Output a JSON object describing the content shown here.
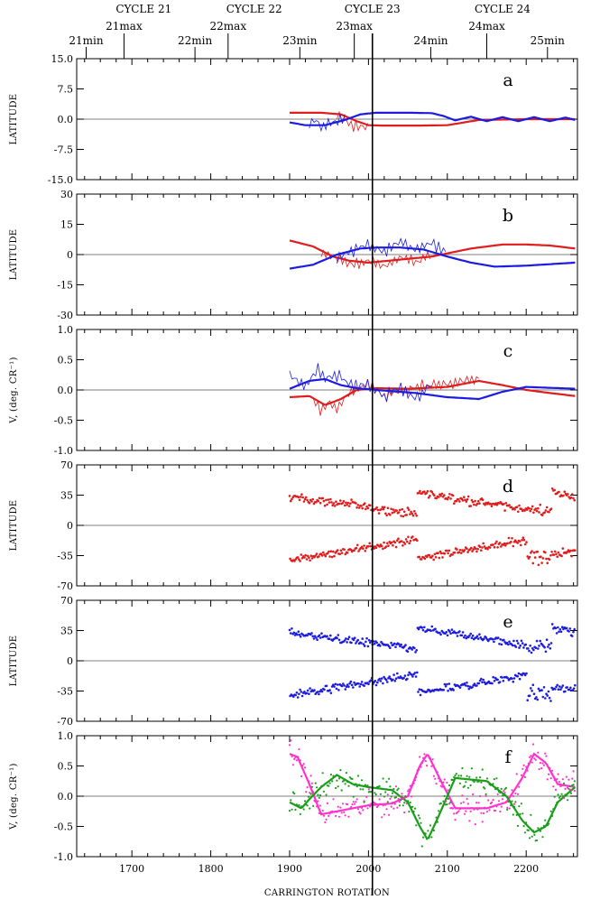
{
  "chart_data": {
    "type": "line",
    "xlabel": "CARRINGTON ROTATION",
    "xlim": [
      1630,
      2265
    ],
    "xticks": [
      1700,
      1800,
      1900,
      2000,
      2100,
      2200
    ],
    "vertical_marker_x": 2005,
    "colors": {
      "red": "#e01c1c",
      "blue": "#1c1ce0",
      "magenta": "#ff33cc",
      "green": "#1a9e1a"
    },
    "cycles": [
      {
        "label": "CYCLE 21",
        "x": 1715
      },
      {
        "label": "CYCLE 22",
        "x": 1855
      },
      {
        "label": "CYCLE 23",
        "x": 2005
      },
      {
        "label": "CYCLE 24",
        "x": 2170
      }
    ],
    "events": [
      {
        "label": "21min",
        "x": 1642,
        "row": "lower"
      },
      {
        "label": "21max",
        "x": 1690,
        "row": "upper"
      },
      {
        "label": "22min",
        "x": 1780,
        "row": "lower"
      },
      {
        "label": "22max",
        "x": 1822,
        "row": "upper"
      },
      {
        "label": "23min",
        "x": 1913,
        "row": "lower"
      },
      {
        "label": "23max",
        "x": 1982,
        "row": "upper"
      },
      {
        "label": "24min",
        "x": 2079,
        "row": "lower"
      },
      {
        "label": "24max",
        "x": 2150,
        "row": "upper"
      },
      {
        "label": "25min",
        "x": 2227,
        "row": "lower"
      }
    ],
    "panels": [
      {
        "letter": "a",
        "ylabel": "LATITUDE",
        "ylim": [
          -15,
          15
        ],
        "yticks": [
          -15.0,
          -7.5,
          0.0,
          7.5,
          15.0
        ],
        "tick_decimals": 1,
        "series": [
          {
            "color": "red",
            "style": "thick",
            "x": [
              1900,
              1940,
              1965,
              1985,
              2000,
              2020,
              2060,
              2100,
              2140,
              2200,
              2262
            ],
            "y": [
              1.6,
              1.6,
              1.2,
              -0.5,
              -1.5,
              -1.6,
              -1.6,
              -1.5,
              -0.2,
              0.0,
              0.0
            ]
          },
          {
            "color": "red",
            "style": "thin",
            "x": [
              1960,
              1970,
              1980,
              1990,
              2000
            ],
            "y": [
              1.4,
              -0.2,
              -1.4,
              -1.9,
              -1.7
            ]
          },
          {
            "color": "blue",
            "style": "thick",
            "x": [
              1900,
              1920,
              1945,
              1970,
              1990,
              2010,
              2050,
              2080,
              2095,
              2110,
              2130,
              2150,
              2170,
              2190,
              2210,
              2230,
              2250,
              2262
            ],
            "y": [
              -0.8,
              -1.5,
              -1.5,
              -0.2,
              1.2,
              1.6,
              1.6,
              1.5,
              0.8,
              -0.3,
              0.6,
              -0.5,
              0.5,
              -0.5,
              0.5,
              -0.5,
              0.4,
              -0.2
            ]
          },
          {
            "color": "blue",
            "style": "thin",
            "x": [
              1925,
              1932,
              1940,
              1955,
              1970
            ],
            "y": [
              -1.0,
              -0.2,
              -1.8,
              -0.8,
              0.2
            ]
          }
        ]
      },
      {
        "letter": "b",
        "ylabel": "LATITUDE",
        "ylim": [
          -30,
          30
        ],
        "yticks": [
          -30,
          -15,
          0,
          15,
          30
        ],
        "tick_decimals": 0,
        "series": [
          {
            "color": "red",
            "style": "thick",
            "x": [
              1900,
              1930,
              1955,
              1975,
              2000,
              2040,
              2080,
              2130,
              2170,
              2200,
              2230,
              2262
            ],
            "y": [
              7,
              4,
              -1,
              -3,
              -4,
              -2.5,
              -1,
              3,
              5,
              5,
              4.5,
              3
            ]
          },
          {
            "color": "red",
            "style": "thin",
            "x": [
              1940,
              1960,
              1980,
              2000,
              2020,
              2040,
              2060,
              2080
            ],
            "y": [
              1,
              -2,
              -5,
              -3,
              -6,
              -1,
              -4,
              0
            ]
          },
          {
            "color": "blue",
            "style": "thick",
            "x": [
              1900,
              1930,
              1960,
              1990,
              2010,
              2040,
              2070,
              2100,
              2130,
              2160,
              2200,
              2262
            ],
            "y": [
              -7,
              -5,
              0,
              3,
              3.5,
              3.5,
              2.5,
              -1,
              -4,
              -6,
              -5.5,
              -4
            ]
          },
          {
            "color": "blue",
            "style": "thin",
            "x": [
              1960,
              1980,
              2000,
              2020,
              2040,
              2060,
              2080,
              2100
            ],
            "y": [
              -2,
              2,
              5,
              1,
              7,
              2,
              6,
              1
            ]
          }
        ]
      },
      {
        "letter": "c",
        "ylabel": "V, (deg. CR⁻¹)",
        "ylim": [
          -1.0,
          1.0
        ],
        "yticks": [
          -1.0,
          -0.5,
          0.0,
          0.5,
          1.0
        ],
        "tick_decimals": 1,
        "series": [
          {
            "color": "red",
            "style": "thick",
            "x": [
              1900,
              1925,
              1945,
              1965,
              1985,
              2010,
              2050,
              2100,
              2140,
              2170,
              2200,
              2230,
              2262
            ],
            "y": [
              -0.12,
              -0.1,
              -0.25,
              -0.15,
              0.0,
              0.03,
              0.02,
              0.05,
              0.15,
              0.08,
              0.0,
              -0.05,
              -0.1
            ]
          },
          {
            "color": "red",
            "style": "thin",
            "x": [
              1930,
              1940,
              1950,
              1960,
              1975,
              2000,
              2020,
              2060,
              2100,
              2140
            ],
            "y": [
              -0.15,
              -0.35,
              -0.2,
              -0.3,
              -0.05,
              0.1,
              -0.1,
              0.05,
              0.1,
              0.2
            ]
          },
          {
            "color": "blue",
            "style": "thick",
            "x": [
              1900,
              1925,
              1945,
              1965,
              1985,
              2010,
              2060,
              2100,
              2140,
              2170,
              2200,
              2262
            ],
            "y": [
              0.02,
              0.15,
              0.18,
              0.08,
              0.03,
              0.0,
              -0.05,
              -0.12,
              -0.15,
              -0.03,
              0.05,
              0.02
            ]
          },
          {
            "color": "blue",
            "style": "thin",
            "x": [
              1900,
              1920,
              1935,
              1945,
              1960,
              1980,
              2000,
              2020,
              2040,
              2060,
              2080
            ],
            "y": [
              0.25,
              0.05,
              0.35,
              0.2,
              0.25,
              0.05,
              0.1,
              -0.1,
              0.05,
              -0.15,
              0.1
            ]
          }
        ]
      },
      {
        "letter": "d",
        "ylabel": "LATITUDE",
        "ylim": [
          -70,
          70
        ],
        "yticks": [
          -70,
          -35,
          0,
          35,
          70
        ],
        "tick_decimals": 0,
        "series": [
          {
            "color": "red",
            "style": "points",
            "generator": "cycle_lat"
          }
        ]
      },
      {
        "letter": "e",
        "ylabel": "LATITUDE",
        "ylim": [
          -70,
          70
        ],
        "yticks": [
          -70,
          -35,
          0,
          35,
          70
        ],
        "tick_decimals": 0,
        "series": [
          {
            "color": "blue",
            "style": "points",
            "generator": "cycle_lat"
          }
        ]
      },
      {
        "letter": "f",
        "ylabel": "V, (deg. CR⁻¹)",
        "ylim": [
          -1.0,
          1.0
        ],
        "yticks": [
          -1.0,
          -0.5,
          0.0,
          0.5,
          1.0
        ],
        "tick_decimals": 1,
        "series": [
          {
            "color": "magenta",
            "style": "thick",
            "x": [
              1900,
              1910,
              1925,
              1940,
              1960,
              1980,
              2000,
              2030,
              2050,
              2065,
              2075,
              2090,
              2110,
              2150,
              2175,
              2195,
              2210,
              2225,
              2240,
              2262
            ],
            "y": [
              0.7,
              0.65,
              0.2,
              -0.3,
              -0.25,
              -0.2,
              -0.15,
              -0.12,
              0.0,
              0.5,
              0.7,
              0.3,
              -0.2,
              -0.2,
              -0.1,
              0.3,
              0.7,
              0.55,
              0.2,
              0.15
            ]
          },
          {
            "color": "green",
            "style": "thick",
            "x": [
              1900,
              1915,
              1925,
              1940,
              1960,
              1980,
              2000,
              2030,
              2050,
              2065,
              2075,
              2090,
              2110,
              2150,
              2175,
              2195,
              2210,
              2225,
              2240,
              2262
            ],
            "y": [
              -0.1,
              -0.2,
              -0.05,
              0.15,
              0.35,
              0.2,
              0.15,
              0.1,
              -0.1,
              -0.5,
              -0.72,
              -0.3,
              0.3,
              0.25,
              0.0,
              -0.4,
              -0.6,
              -0.5,
              -0.1,
              0.15
            ]
          },
          {
            "color": "magenta",
            "style": "points",
            "scatter_of": 0
          },
          {
            "color": "green",
            "style": "points",
            "scatter_of": 1
          }
        ]
      }
    ]
  }
}
